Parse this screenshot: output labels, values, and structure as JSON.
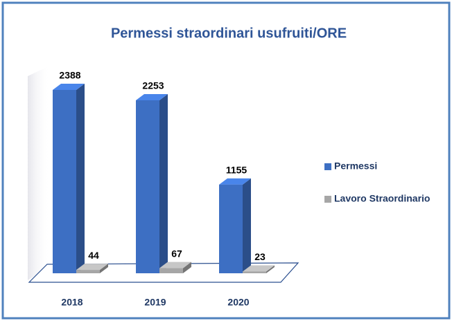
{
  "chart_data": {
    "type": "bar3d",
    "title": "Permessi straordinari usufruiti/ORE",
    "categories": [
      "2018",
      "2019",
      "2020"
    ],
    "series": [
      {
        "name": "Permessi",
        "color": "#3d6fc3",
        "values": [
          2388,
          2253,
          1155
        ]
      },
      {
        "name": "Lavoro Straordinario",
        "color": "#a6a6a6",
        "values": [
          44,
          67,
          23
        ]
      }
    ]
  }
}
